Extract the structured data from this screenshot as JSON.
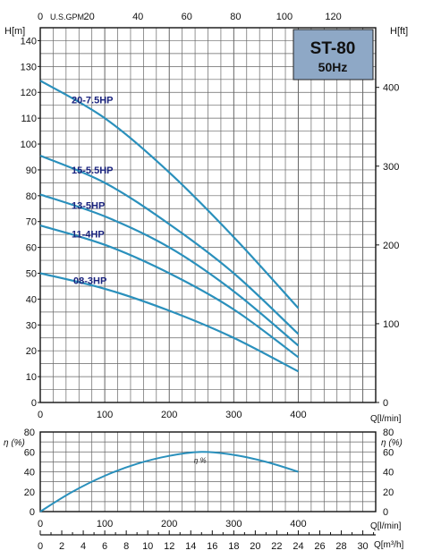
{
  "chart_data": [
    {
      "type": "line",
      "panel": "head-vs-flow",
      "model_title": "ST-80",
      "frequency_label": "50Hz",
      "x_label": "Q[l/min]",
      "y_label_left": "H[m]",
      "y_label_right": "H[ft]",
      "top_axis_label": "U.S.GPM",
      "xlim": [
        0,
        520
      ],
      "ylim": [
        0,
        145
      ],
      "x_ticks": [
        0,
        100,
        200,
        300,
        400
      ],
      "y_ticks": [
        0,
        10,
        20,
        30,
        40,
        50,
        60,
        70,
        80,
        90,
        100,
        110,
        120,
        130,
        140
      ],
      "ft_ticks": [
        0,
        100,
        200,
        300,
        400
      ],
      "gpm_ticks": [
        0,
        20,
        40,
        60,
        80,
        100,
        120
      ],
      "grid": true,
      "series": [
        {
          "name": "20-7.5HP",
          "x": [
            0,
            100,
            200,
            300,
            400
          ],
          "y": [
            124.5,
            110,
            89,
            64,
            36.5
          ]
        },
        {
          "name": "15-5.5HP",
          "x": [
            0,
            100,
            200,
            300,
            400
          ],
          "y": [
            95.5,
            85,
            69,
            50,
            26.5
          ]
        },
        {
          "name": "13-5HP",
          "x": [
            0,
            100,
            200,
            300,
            400
          ],
          "y": [
            80.5,
            72,
            60,
            43,
            22
          ]
        },
        {
          "name": "11-4HP",
          "x": [
            0,
            100,
            200,
            300,
            400
          ],
          "y": [
            68.5,
            61,
            50,
            36,
            17.5
          ]
        },
        {
          "name": "08-3HP",
          "x": [
            0,
            100,
            200,
            300,
            400
          ],
          "y": [
            50,
            44,
            35.5,
            25,
            12
          ]
        }
      ]
    },
    {
      "type": "line",
      "panel": "efficiency-vs-flow",
      "x_label": "Q[l/min]",
      "y_label_left": "η (%)",
      "y_label_right": "η (%)",
      "xlim": [
        0,
        520
      ],
      "ylim": [
        0,
        80
      ],
      "x_ticks": [
        0,
        100,
        200,
        300,
        400
      ],
      "y_ticks": [
        0,
        20,
        40,
        60,
        80
      ],
      "grid": true,
      "series": [
        {
          "name": "η %",
          "x": [
            0,
            50,
            100,
            150,
            200,
            250,
            300,
            350,
            400
          ],
          "y": [
            0,
            20,
            36,
            48,
            56,
            60,
            57,
            50,
            40
          ]
        }
      ],
      "m3h_axis_label": "Q[m³/h]",
      "m3h_ticks": [
        0,
        2,
        4,
        6,
        8,
        10,
        12,
        14,
        16,
        18,
        20,
        22,
        24,
        26,
        28,
        30
      ]
    }
  ],
  "colors": {
    "curve": "#2a90bc",
    "grid": "#666666",
    "title_box": "#8ea8c6",
    "label_text": "#1a237e"
  }
}
